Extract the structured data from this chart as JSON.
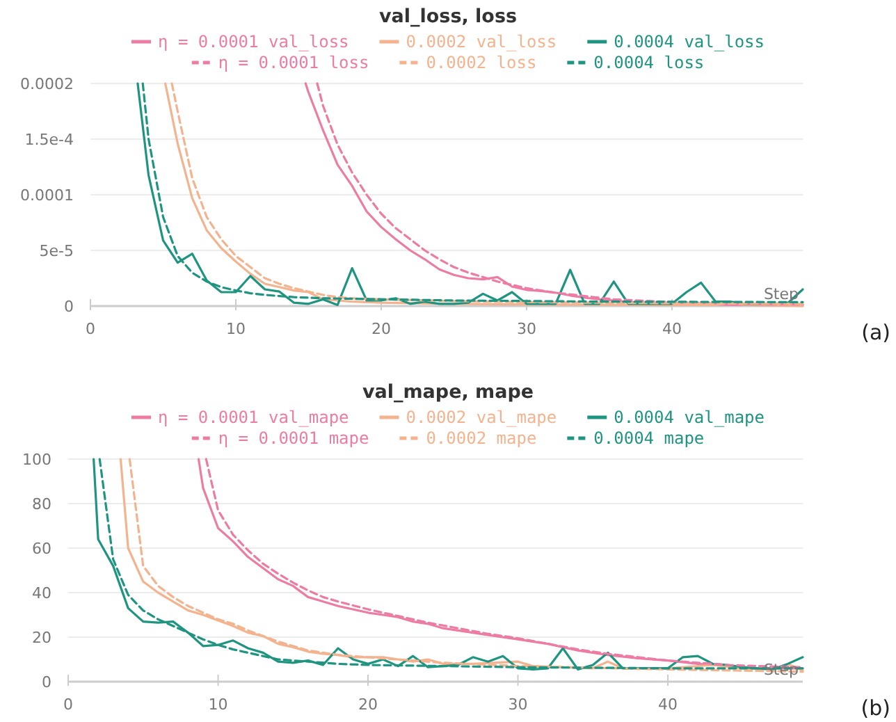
{
  "chart_data": [
    {
      "type": "line",
      "title": "val_loss, loss",
      "xlabel": "Step",
      "xlim": [
        0,
        49
      ],
      "xticks": [
        0,
        10,
        20,
        30,
        40
      ],
      "ylim": [
        0,
        0.0002
      ],
      "yticks": [
        0,
        {
          "value": 5e-05,
          "label": "5e-5"
        },
        {
          "value": 0.0001,
          "label": "0.0001"
        },
        {
          "value": 0.00015,
          "label": "1.5e-4"
        },
        {
          "value": 0.0002,
          "label": "0.0002"
        }
      ],
      "grid": "y",
      "legend": "top",
      "annotations": [
        "(a)"
      ],
      "series": [
        {
          "name": "η = 0.0001 val_loss",
          "color": "#ec7ca3",
          "line_style": "solid",
          "x": [
            14.8,
            15,
            16,
            17,
            18,
            19,
            20,
            21,
            22,
            23,
            24,
            25,
            26,
            27,
            28,
            29,
            30,
            31,
            32,
            33,
            34,
            35,
            36,
            37,
            40,
            45,
            49
          ],
          "values": [
            0.0002,
            0.000192,
            0.000158,
            0.000127,
            0.000108,
            8.5e-05,
            7.1e-05,
            6e-05,
            5e-05,
            4.2e-05,
            3.3e-05,
            2.8e-05,
            2.5e-05,
            2.4e-05,
            2.6e-05,
            1.75e-05,
            1.45e-05,
            1.35e-05,
            1.2e-05,
            9.5e-06,
            7.5e-06,
            6e-06,
            5e-06,
            3.5e-06,
            2e-06,
            1e-06,
            5e-07
          ]
        },
        {
          "name": "0.0002 val_loss",
          "color": "#f4b38f",
          "line_style": "solid",
          "x": [
            5.15,
            6,
            7,
            8,
            9,
            10,
            11,
            12,
            13,
            14,
            15,
            16,
            17,
            18,
            20,
            25,
            30,
            40,
            43,
            44,
            45,
            49
          ],
          "values": [
            0.0002,
            0.000146,
            9.7e-05,
            6.8e-05,
            5.2e-05,
            4e-05,
            2.9e-05,
            2e-05,
            1.7e-05,
            1.4e-05,
            1.25e-05,
            6e-06,
            5e-06,
            4e-06,
            3e-06,
            2e-06,
            1.5e-06,
            1e-06,
            1e-06,
            3e-06,
            1e-06,
            0
          ]
        },
        {
          "name": "0.0004 val_loss",
          "color": "#1f9480",
          "line_style": "solid",
          "x": [
            3.25,
            4,
            5,
            6,
            7,
            8,
            9,
            10,
            11,
            12,
            13,
            14,
            15,
            16,
            17,
            18,
            19,
            20,
            21,
            22,
            23,
            24,
            25,
            26,
            27,
            28,
            29,
            30,
            31,
            32,
            33,
            34,
            35,
            36,
            37,
            38,
            39,
            40,
            41,
            42,
            43,
            44,
            45,
            46,
            47,
            48,
            49
          ],
          "values": [
            0.0002,
            0.0001175,
            5.9e-05,
            3.9e-05,
            4.7e-05,
            2.3e-05,
            1.25e-05,
            1.25e-05,
            2.7e-05,
            1.5e-05,
            1.3e-05,
            3e-06,
            2e-06,
            6e-06,
            1e-06,
            3.4e-05,
            5e-06,
            5e-06,
            7e-06,
            2e-06,
            4e-06,
            2e-06,
            2e-06,
            3e-06,
            1.1e-05,
            5e-06,
            1.25e-05,
            2e-06,
            2e-06,
            2e-06,
            3.25e-05,
            2e-06,
            2e-06,
            2.2e-05,
            2e-06,
            2e-06,
            2e-06,
            2e-06,
            1.25e-05,
            2.1e-05,
            4e-06,
            4e-06,
            2e-06,
            2e-06,
            2e-06,
            3e-06,
            1.5e-05
          ]
        },
        {
          "name": "η = 0.0001 loss",
          "color": "#ec7ca3",
          "line_style": "dashed",
          "x": [
            15.6,
            16,
            17,
            18,
            19,
            20,
            21,
            22,
            23,
            24,
            25,
            26,
            27,
            28,
            29,
            30,
            32,
            34,
            36,
            40,
            45,
            49
          ],
          "values": [
            0.0002,
            0.00018,
            0.000145,
            0.00012,
            0.0001,
            8.3e-05,
            7e-05,
            6e-05,
            5e-05,
            4.2e-05,
            3.5e-05,
            3e-05,
            2.6e-05,
            2.2e-05,
            1.9e-05,
            1.6e-05,
            1.2e-05,
            9e-06,
            6e-06,
            3.5e-06,
            2e-06,
            1.5e-06
          ]
        },
        {
          "name": "0.0002 loss",
          "color": "#f4b38f",
          "line_style": "dashed",
          "x": [
            5.6,
            6,
            7,
            8,
            9,
            10,
            11,
            12,
            13,
            14,
            15,
            16,
            17,
            18,
            20,
            25,
            30,
            40,
            49
          ],
          "values": [
            0.0002,
            0.000175,
            0.000115,
            8e-05,
            6e-05,
            4.5e-05,
            3.5e-05,
            2.5e-05,
            2e-05,
            1.6e-05,
            1.3e-05,
            1e-05,
            8e-06,
            7e-06,
            6e-06,
            4.5e-06,
            3.5e-06,
            2.5e-06,
            2e-06
          ]
        },
        {
          "name": "0.0004 loss",
          "color": "#1f9480",
          "line_style": "dashed",
          "x": [
            3.6,
            4,
            5,
            6,
            7,
            8,
            9,
            10,
            11,
            12,
            13,
            14,
            15,
            16,
            25,
            35,
            49
          ],
          "values": [
            0.0002,
            0.00015,
            8e-05,
            4.5e-05,
            3e-05,
            2.2e-05,
            1.7e-05,
            1.4e-05,
            1.15e-05,
            1e-05,
            9e-06,
            8e-06,
            7.5e-06,
            7e-06,
            5e-06,
            4e-06,
            3.5e-06
          ]
        }
      ]
    },
    {
      "type": "line",
      "title": "val_mape, mape",
      "xlabel": "Step",
      "xlim": [
        0,
        49
      ],
      "xticks": [
        0,
        10,
        20,
        30,
        40
      ],
      "ylim": [
        0,
        100
      ],
      "yticks": [
        0,
        20,
        40,
        60,
        80,
        100
      ],
      "grid": "y",
      "legend": "top",
      "annotations": [
        "(b)"
      ],
      "series": [
        {
          "name": "η = 0.0001 val_mape",
          "color": "#ec7ca3",
          "line_style": "solid",
          "x": [
            8.7,
            9,
            10,
            11,
            12,
            13,
            14,
            15,
            16,
            17,
            18,
            19,
            20,
            21,
            22,
            23,
            24,
            25,
            26,
            27,
            28,
            30,
            32,
            34,
            36,
            38,
            40,
            42,
            44,
            46,
            49
          ],
          "values": [
            100,
            87,
            69,
            63,
            56,
            51,
            46,
            43,
            38,
            36,
            34,
            32.5,
            31,
            30,
            29,
            27,
            26,
            24,
            23,
            22,
            21,
            19,
            17,
            14,
            12,
            10.5,
            9.5,
            8,
            7,
            6,
            6
          ]
        },
        {
          "name": "0.0002 val_mape",
          "color": "#f4b38f",
          "line_style": "solid",
          "x": [
            3.5,
            4,
            5,
            6,
            7,
            8,
            9,
            10,
            11,
            12,
            13,
            14,
            15,
            16,
            17,
            18,
            19,
            20,
            21,
            22,
            23,
            24,
            25,
            27,
            30,
            31,
            35,
            36,
            37,
            40,
            43,
            45,
            47,
            48,
            49
          ],
          "values": [
            100,
            60,
            45,
            40,
            36,
            32,
            30,
            27.5,
            25,
            22,
            20.5,
            17,
            15.5,
            13.5,
            12.5,
            12,
            11,
            11,
            11,
            10,
            9,
            10,
            8,
            8,
            9,
            7,
            6,
            9,
            6,
            6,
            7.5,
            6,
            5.5,
            8,
            5
          ]
        },
        {
          "name": "0.0004 val_mape",
          "color": "#1f9480",
          "line_style": "solid",
          "x": [
            1.7,
            2,
            3,
            4,
            5,
            6,
            7,
            8,
            9,
            10,
            11,
            12,
            13,
            14,
            15,
            16,
            17,
            18,
            19,
            20,
            21,
            22,
            23,
            24,
            25,
            26,
            27,
            28,
            29,
            30,
            31,
            32,
            33,
            34,
            35,
            36,
            37,
            38,
            39,
            40,
            41,
            42,
            43,
            44,
            45,
            46,
            47,
            48,
            49
          ],
          "values": [
            100,
            64,
            52,
            33,
            27,
            26.5,
            27,
            22,
            16,
            16.5,
            18.5,
            15,
            13,
            9,
            8.5,
            9.5,
            7.5,
            15,
            10,
            8,
            10,
            7,
            11.5,
            6.5,
            7,
            7.5,
            11,
            9,
            11.5,
            6,
            5.5,
            6,
            15,
            5.5,
            7.5,
            13,
            6,
            6,
            6,
            6,
            11,
            11.5,
            8,
            7.5,
            6.5,
            6,
            5.5,
            8,
            11
          ]
        },
        {
          "name": "η = 0.0001 mape",
          "color": "#ec7ca3",
          "line_style": "dashed",
          "x": [
            9.2,
            10,
            11,
            12,
            13,
            14,
            15,
            16,
            17,
            18,
            20,
            22,
            24,
            26,
            28,
            30,
            32,
            34,
            36,
            38,
            40,
            42,
            44,
            46,
            49
          ],
          "values": [
            100,
            77,
            66,
            59,
            53,
            48.5,
            44.5,
            41,
            38,
            36,
            32.5,
            29.5,
            26.5,
            24,
            21.5,
            19.5,
            17,
            14.5,
            12.5,
            11,
            9.5,
            8.5,
            7.5,
            7,
            6.5
          ]
        },
        {
          "name": "0.0002 mape",
          "color": "#f4b38f",
          "line_style": "dashed",
          "x": [
            4.1,
            5,
            6,
            7,
            8,
            9,
            10,
            11,
            12,
            13,
            14,
            15,
            16,
            17,
            18,
            20,
            25,
            30,
            40,
            49
          ],
          "values": [
            100,
            52,
            43,
            38,
            34,
            31,
            28,
            26,
            23,
            20.5,
            18,
            16,
            14,
            13,
            12,
            11,
            8.5,
            7,
            5.5,
            4.5
          ]
        },
        {
          "name": "0.0004 mape",
          "color": "#1f9480",
          "line_style": "dashed",
          "x": [
            2.1,
            3,
            4,
            5,
            6,
            7,
            8,
            9,
            10,
            11,
            12,
            13,
            14,
            15,
            16,
            18,
            20,
            25,
            30,
            40,
            49
          ],
          "values": [
            100,
            55,
            39,
            32,
            28,
            25,
            22,
            19,
            16.5,
            14.5,
            13,
            11.5,
            10,
            9.5,
            9,
            8,
            7.5,
            7,
            6.5,
            6,
            6
          ]
        }
      ]
    }
  ]
}
